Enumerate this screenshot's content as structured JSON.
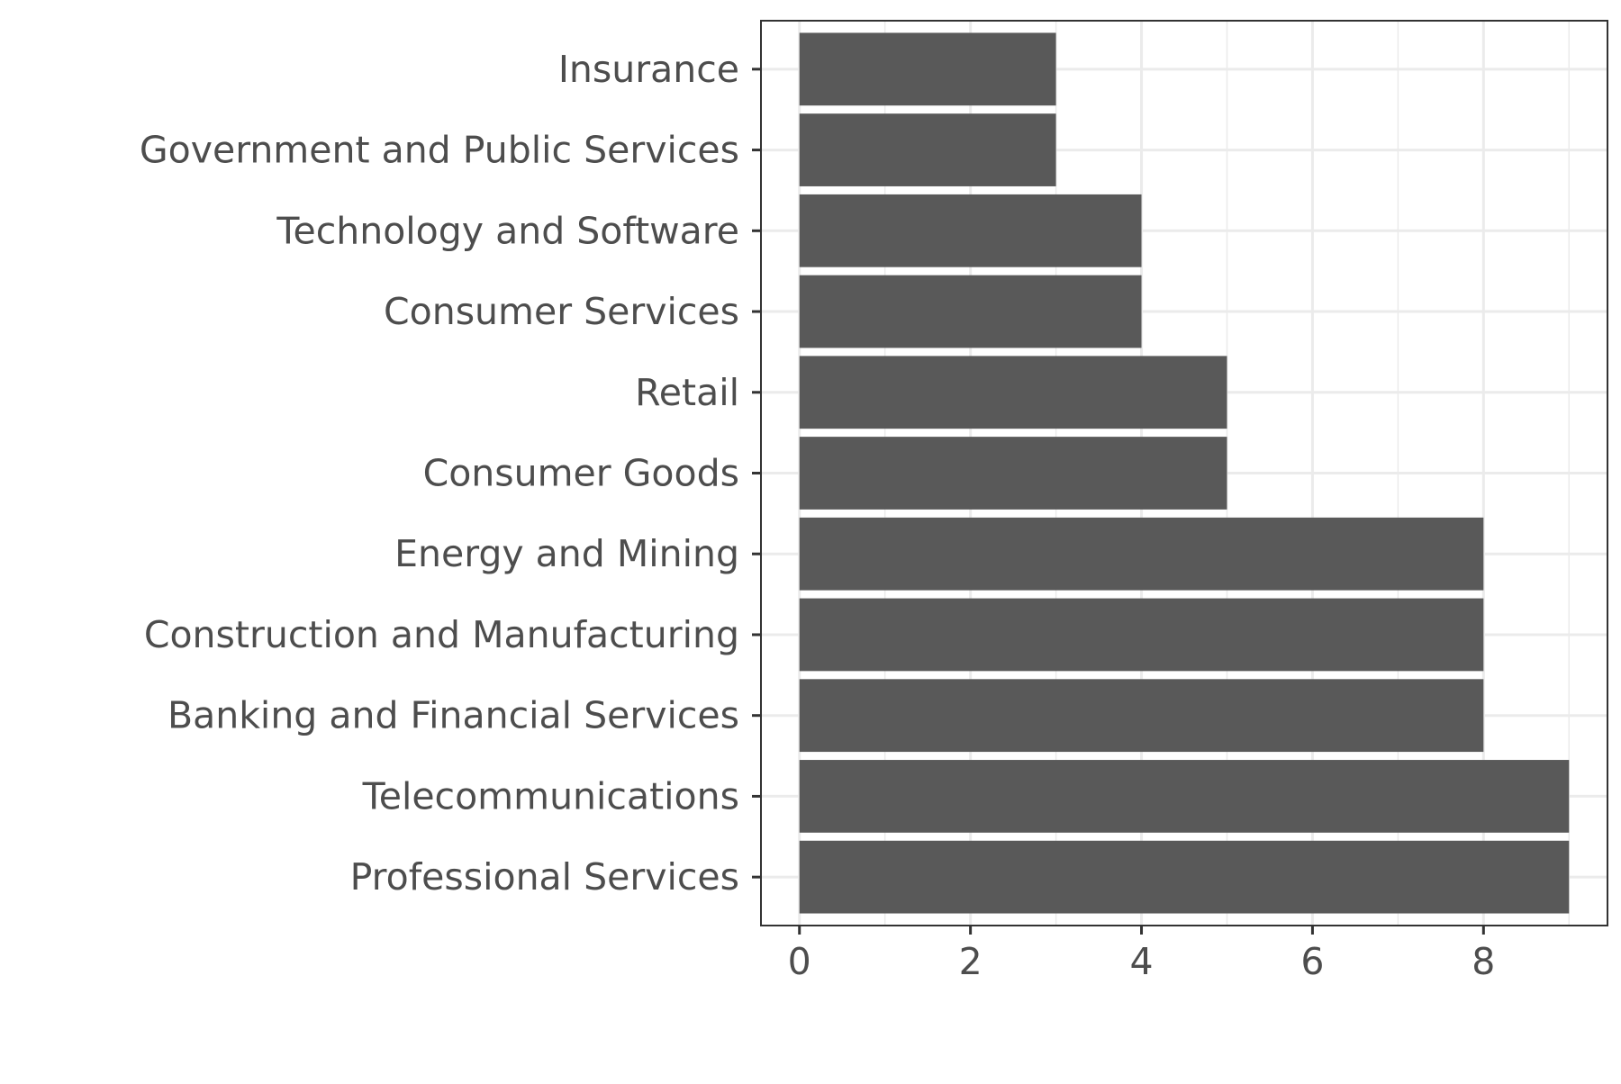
{
  "chart_data": {
    "type": "bar",
    "orientation": "horizontal",
    "categories": [
      "Insurance",
      "Government and Public Services",
      "Technology and Software",
      "Consumer Services",
      "Retail",
      "Consumer Goods",
      "Energy and Mining",
      "Construction and Manufacturing",
      "Banking and Financial Services",
      "Telecommunications",
      "Professional Services"
    ],
    "values": [
      3,
      3,
      4,
      4,
      5,
      5,
      8,
      8,
      8,
      9,
      9
    ],
    "title": "",
    "xlabel": "",
    "ylabel": "",
    "xlim": [
      -0.45,
      9.45
    ],
    "xticks": [
      0,
      2,
      4,
      6,
      8
    ],
    "xtick_labels": [
      "0",
      "2",
      "4",
      "6",
      "8"
    ],
    "grid": true,
    "legend": "none",
    "colors": {
      "bar": "#595959",
      "grid": "#ebebeb",
      "panel_border": "#333333",
      "tick_text": "#4d4d4d"
    }
  }
}
